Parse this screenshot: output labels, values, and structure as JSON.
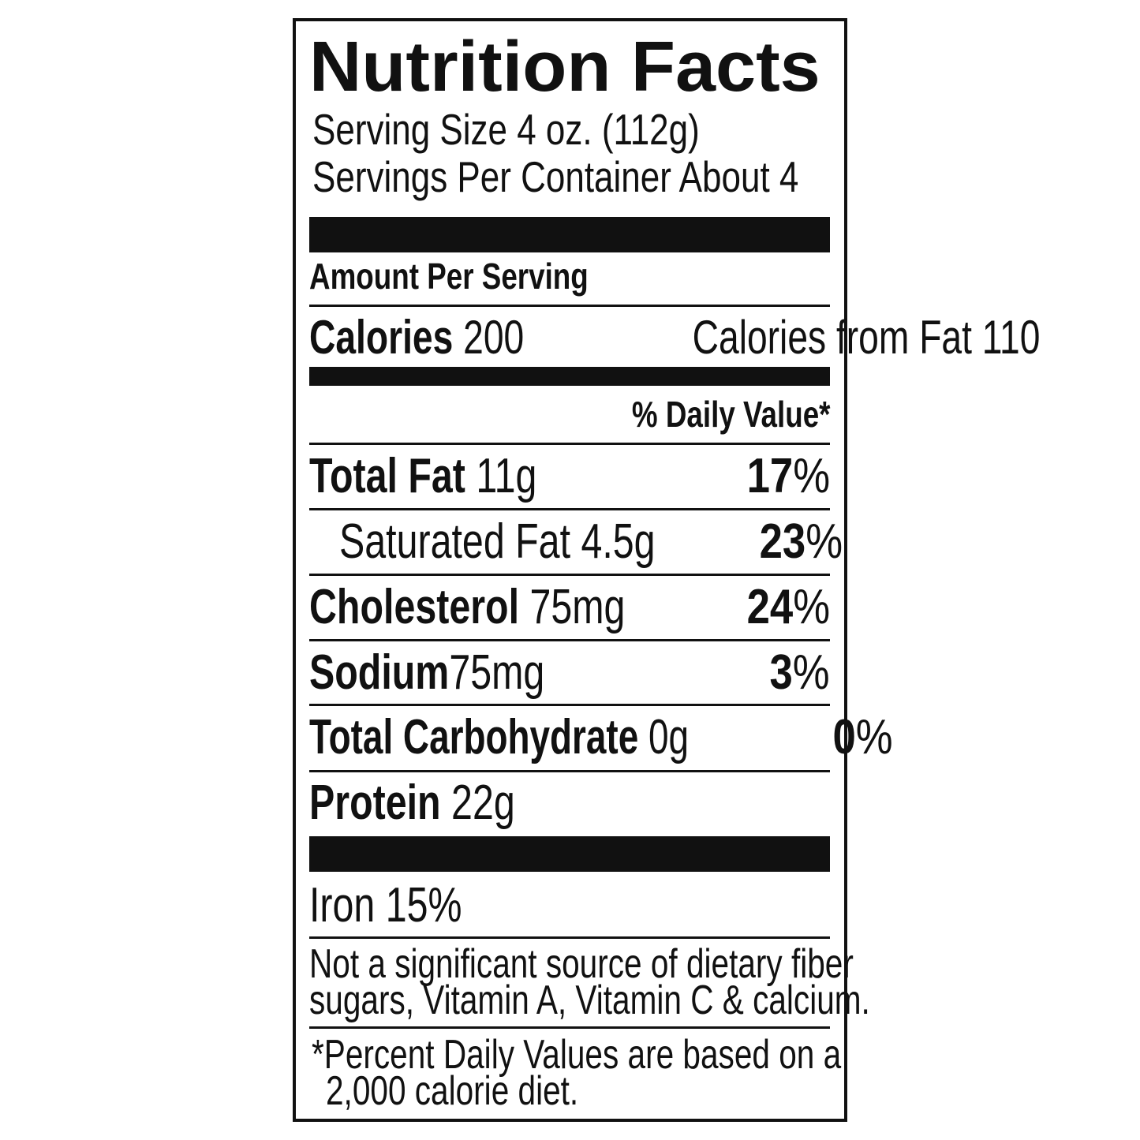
{
  "title": "Nutrition Facts",
  "serving_size": "Serving  Size 4 oz. (112g)",
  "servings_per_container": "Servings Per Container About 4",
  "amount_per_serving": "Amount Per Serving",
  "calories": {
    "label": "Calories",
    "value": "200",
    "from_fat_label": "Calories from Fat",
    "from_fat_value": "110"
  },
  "daily_value_header": "% Daily Value*",
  "nutrients": [
    {
      "label": "Total Fat",
      "amount": "11g",
      "dv": "17",
      "pct": "%"
    },
    {
      "label": "Saturated Fat 4.5g",
      "amount": "",
      "dv": "23",
      "pct": "%"
    },
    {
      "label": "Cholesterol",
      "amount": "75mg",
      "dv": "24",
      "pct": "%"
    },
    {
      "label": "Sodium",
      "amount": "75mg",
      "dv": "3",
      "pct": "%"
    },
    {
      "label": "Total Carbohydrate",
      "amount": "0g",
      "dv": "0",
      "pct": "%"
    },
    {
      "label": "Protein",
      "amount": "22g"
    }
  ],
  "iron": "Iron 15%",
  "note_lines": [
    "Not a significant source of dietary fiber",
    "sugars, Vitamin A, Vitamin C & calcium."
  ],
  "footnote_lines": [
    "*Percent Daily Values are based on a",
    "2,000 calorie diet."
  ]
}
